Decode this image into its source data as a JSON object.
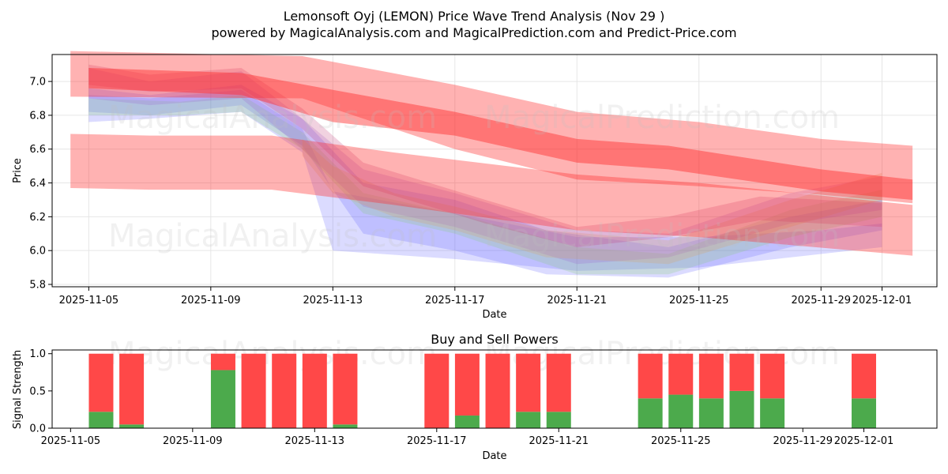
{
  "title_line1": "Lemonsoft Oyj (LEMON) Price Wave Trend Analysis (Nov 29 )",
  "title_line2": "powered by MagicalAnalysis.com and MagicalPrediction.com and Predict-Price.com",
  "watermark_analysis": "MagicalAnalysis.com",
  "watermark_prediction": "MagicalPrediction.com",
  "colors": {
    "red_band": "#ff2a2a",
    "blue_band": "#5a5aff",
    "green_band": "#7fcf6a",
    "buy": "#4caa4c",
    "sell": "#ff4848",
    "grid": "#e6e6e6"
  },
  "chart_data": [
    {
      "type": "area",
      "title": "",
      "xlabel": "Date",
      "ylabel": "Price",
      "x_range": [
        "2025-11-03.8",
        "2025-12-02.8"
      ],
      "ylim": [
        5.8,
        7.15
      ],
      "x_ticks": [
        "2025-11-05",
        "2025-11-09",
        "2025-11-13",
        "2025-11-17",
        "2025-11-21",
        "2025-11-25",
        "2025-11-29",
        "2025-12-01"
      ],
      "y_ticks": [
        "5.8",
        "6.0",
        "6.2",
        "6.4",
        "6.6",
        "6.8",
        "7.0"
      ],
      "grid": true,
      "wide_bands": [
        {
          "name": "upper long-term band",
          "color": "red",
          "x": [
            "2025-11-04.4",
            "2025-11-12",
            "2025-11-17",
            "2025-11-21",
            "2025-11-25",
            "2025-11-29",
            "2025-12-02"
          ],
          "upper": [
            7.18,
            7.15,
            6.98,
            6.82,
            6.76,
            6.66,
            6.62
          ],
          "lower": [
            6.91,
            6.9,
            6.6,
            6.42,
            6.38,
            6.33,
            6.28
          ]
        },
        {
          "name": "lower long-term band",
          "color": "red",
          "x": [
            "2025-11-04.4",
            "2025-11-07",
            "2025-11-11",
            "2025-11-15",
            "2025-11-21",
            "2025-11-25",
            "2025-12-02"
          ],
          "upper": [
            6.69,
            6.68,
            6.68,
            6.58,
            6.45,
            6.4,
            6.27
          ],
          "lower": [
            6.37,
            6.36,
            6.36,
            6.27,
            6.12,
            6.08,
            5.97
          ]
        },
        {
          "name": "mid-term band",
          "color": "red",
          "x": [
            "2025-11-05",
            "2025-11-10",
            "2025-11-13",
            "2025-11-17",
            "2025-11-21",
            "2025-11-24",
            "2025-11-29",
            "2025-12-02"
          ],
          "upper": [
            7.08,
            7.05,
            6.95,
            6.82,
            6.66,
            6.62,
            6.48,
            6.42
          ],
          "lower": [
            6.96,
            6.92,
            6.76,
            6.68,
            6.52,
            6.48,
            6.35,
            6.3
          ]
        }
      ],
      "wave_bands": [
        {
          "name": "blue wave 1",
          "color": "blue",
          "x": [
            "2025-11-05",
            "2025-11-07",
            "2025-11-10",
            "2025-11-12",
            "2025-11-13",
            "2025-11-17",
            "2025-11-21",
            "2025-11-25",
            "2025-11-29",
            "2025-12-01"
          ],
          "upper": [
            6.92,
            6.9,
            6.95,
            6.72,
            6.35,
            6.22,
            6.08,
            6.08,
            6.12,
            6.16
          ],
          "lower": [
            6.76,
            6.78,
            6.82,
            6.58,
            6.0,
            5.95,
            5.88,
            5.9,
            5.98,
            6.02
          ]
        },
        {
          "name": "blue wave 2",
          "color": "blue",
          "x": [
            "2025-11-05",
            "2025-11-07",
            "2025-11-10",
            "2025-11-12",
            "2025-11-14",
            "2025-11-17",
            "2025-11-20",
            "2025-11-24",
            "2025-11-28",
            "2025-12-01"
          ],
          "upper": [
            6.96,
            6.92,
            6.98,
            6.78,
            6.4,
            6.3,
            6.12,
            6.02,
            6.2,
            6.3
          ],
          "lower": [
            6.82,
            6.8,
            6.86,
            6.62,
            6.1,
            6.0,
            5.86,
            5.84,
            6.02,
            6.12
          ]
        },
        {
          "name": "green wave",
          "color": "green",
          "x": [
            "2025-11-05",
            "2025-11-08",
            "2025-11-10",
            "2025-11-12",
            "2025-11-14",
            "2025-11-17",
            "2025-11-21",
            "2025-11-24",
            "2025-11-28",
            "2025-12-01"
          ],
          "upper": [
            6.9,
            6.88,
            6.92,
            6.7,
            6.34,
            6.22,
            6.02,
            5.98,
            6.24,
            6.36
          ],
          "lower": [
            6.8,
            6.8,
            6.82,
            6.6,
            6.22,
            6.1,
            5.86,
            5.86,
            6.08,
            6.2
          ]
        },
        {
          "name": "purple wave",
          "color": "purple",
          "x": [
            "2025-11-05",
            "2025-11-07",
            "2025-11-10",
            "2025-11-12",
            "2025-11-14",
            "2025-11-17",
            "2025-11-21",
            "2025-11-24",
            "2025-11-28",
            "2025-12-01"
          ],
          "upper": [
            7.08,
            7.0,
            7.06,
            6.78,
            6.48,
            6.34,
            6.12,
            6.1,
            6.34,
            6.44
          ],
          "lower": [
            6.9,
            6.86,
            6.9,
            6.6,
            6.26,
            6.14,
            5.92,
            5.96,
            6.16,
            6.24
          ]
        },
        {
          "name": "orange wave",
          "color": "orange",
          "x": [
            "2025-11-12",
            "2025-11-13",
            "2025-11-15",
            "2025-11-17",
            "2025-11-20",
            "2025-11-24",
            "2025-11-28",
            "2025-12-01"
          ],
          "upper": [
            6.66,
            6.5,
            6.34,
            6.26,
            6.12,
            6.06,
            6.3,
            6.46
          ],
          "lower": [
            6.56,
            6.34,
            6.2,
            6.12,
            5.96,
            5.92,
            6.14,
            6.3
          ]
        },
        {
          "name": "magenta wave",
          "color": "magenta",
          "x": [
            "2025-11-05",
            "2025-11-07",
            "2025-11-10",
            "2025-11-12",
            "2025-11-14",
            "2025-11-18",
            "2025-11-21",
            "2025-11-24",
            "2025-11-27",
            "2025-12-01"
          ],
          "upper": [
            7.1,
            7.04,
            7.08,
            6.84,
            6.52,
            6.3,
            6.14,
            6.2,
            6.32,
            6.28
          ],
          "lower": [
            6.98,
            6.94,
            6.96,
            6.72,
            6.38,
            6.16,
            6.02,
            6.08,
            6.18,
            6.14
          ]
        }
      ]
    },
    {
      "type": "bar",
      "title": "Buy and Sell Powers",
      "xlabel": "Date",
      "ylabel": "Signal Strength",
      "ylim": [
        0,
        1.05
      ],
      "x_ticks": [
        "2025-11-05",
        "2025-11-09",
        "2025-11-13",
        "2025-11-17",
        "2025-11-21",
        "2025-11-25",
        "2025-11-29",
        "2025-12-01"
      ],
      "y_ticks": [
        "0.0",
        "0.5",
        "1.0"
      ],
      "categories": [
        "2025-11-06",
        "2025-11-07",
        "2025-11-10",
        "2025-11-11",
        "2025-11-12",
        "2025-11-13",
        "2025-11-14",
        "2025-11-17",
        "2025-11-18",
        "2025-11-19",
        "2025-11-20",
        "2025-11-21",
        "2025-11-24",
        "2025-11-25",
        "2025-11-26",
        "2025-11-27",
        "2025-11-28",
        "2025-12-01"
      ],
      "series": [
        {
          "name": "Buy",
          "values": [
            0.22,
            0.05,
            0.78,
            0.0,
            0.0,
            0.0,
            0.05,
            0.0,
            0.17,
            0.0,
            0.22,
            0.22,
            0.4,
            0.45,
            0.4,
            0.5,
            0.4,
            0.4
          ]
        },
        {
          "name": "Sell",
          "values": [
            0.78,
            0.95,
            0.22,
            1.0,
            1.0,
            1.0,
            0.95,
            1.0,
            0.83,
            1.0,
            0.78,
            0.78,
            0.6,
            0.55,
            0.6,
            0.5,
            0.6,
            0.6
          ]
        }
      ]
    }
  ]
}
